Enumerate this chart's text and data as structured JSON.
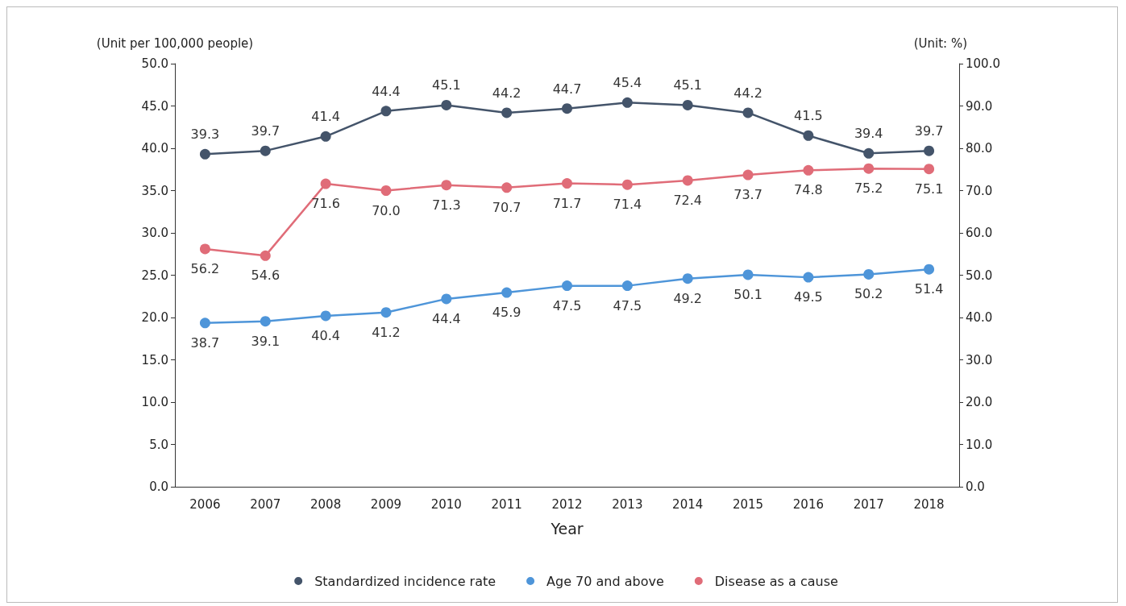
{
  "chart_data": {
    "type": "line",
    "xlabel": "Year",
    "ylabel": "(Unit per 100,000 people)",
    "y2label": "(Unit: %)",
    "categories": [
      "2006",
      "2007",
      "2008",
      "2009",
      "2010",
      "2011",
      "2012",
      "2013",
      "2014",
      "2015",
      "2016",
      "2017",
      "2018"
    ],
    "ylim": [
      0,
      50
    ],
    "yticks": [
      {
        "value": 0,
        "label": "0.0"
      },
      {
        "value": 5,
        "label": "5.0"
      },
      {
        "value": 10,
        "label": "10.0"
      },
      {
        "value": 15,
        "label": "15.0"
      },
      {
        "value": 20,
        "label": "20.0"
      },
      {
        "value": 25,
        "label": "25.0"
      },
      {
        "value": 30,
        "label": "30.0"
      },
      {
        "value": 35,
        "label": "35.0"
      },
      {
        "value": 40,
        "label": "40.0"
      },
      {
        "value": 45,
        "label": "45.0"
      },
      {
        "value": 50,
        "label": "50.0"
      }
    ],
    "y2lim": [
      0,
      100
    ],
    "y2ticks": [
      {
        "value": 0,
        "label": "0.0"
      },
      {
        "value": 10,
        "label": "10.0"
      },
      {
        "value": 20,
        "label": "20.0"
      },
      {
        "value": 30,
        "label": "30.0"
      },
      {
        "value": 40,
        "label": "40.0"
      },
      {
        "value": 50,
        "label": "50.0"
      },
      {
        "value": 60,
        "label": "60.0"
      },
      {
        "value": 70,
        "label": "70.0"
      },
      {
        "value": 80,
        "label": "80.0"
      },
      {
        "value": 90,
        "label": "90.0"
      },
      {
        "value": 100,
        "label": "100.0"
      }
    ],
    "series": [
      {
        "name": "Standardized incidence rate",
        "color": "#44546a",
        "values": [
          39.3,
          39.7,
          41.4,
          44.4,
          45.1,
          44.2,
          44.7,
          45.4,
          45.1,
          44.2,
          41.5,
          39.4,
          39.7
        ],
        "value_labels": [
          "39.3",
          "39.7",
          "41.4",
          "44.4",
          "45.1",
          "44.2",
          "44.7",
          "45.4",
          "45.1",
          "44.2",
          "41.5",
          "39.4",
          "39.7"
        ]
      },
      {
        "name": "Age 70 and above",
        "color": "#4e95d9",
        "axis": "y2",
        "values": [
          38.7,
          39.1,
          40.4,
          41.2,
          44.4,
          45.9,
          47.5,
          47.5,
          49.2,
          50.1,
          49.5,
          50.2,
          51.4
        ],
        "value_labels": [
          "38.7",
          "39.1",
          "40.4",
          "41.2",
          "44.4",
          "45.9",
          "47.5",
          "47.5",
          "49.2",
          "50.1",
          "49.5",
          "50.2",
          "51.4"
        ]
      },
      {
        "name": "Disease as a cause",
        "color": "#e06c78",
        "axis": "y2",
        "values": [
          56.2,
          54.6,
          71.6,
          70.0,
          71.3,
          70.7,
          71.7,
          71.4,
          72.4,
          73.7,
          74.8,
          75.2,
          75.1
        ],
        "value_labels": [
          "56.2",
          "54.6",
          "71.6",
          "70.0",
          "71.3",
          "70.7",
          "71.7",
          "71.4",
          "72.4",
          "73.7",
          "74.8",
          "75.2",
          "75.1"
        ]
      }
    ],
    "marker": "circle",
    "line_style": "solid",
    "grid": false,
    "legend": "bottom"
  }
}
